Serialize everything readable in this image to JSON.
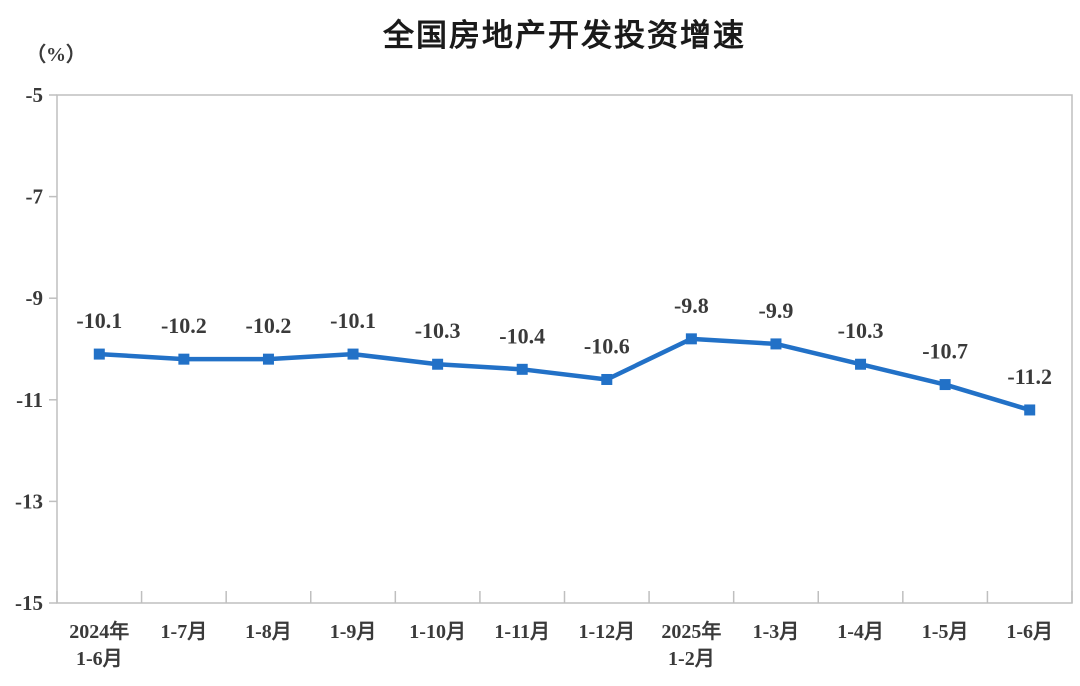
{
  "chart_data": {
    "type": "line",
    "title": "全国房地产开发投资增速",
    "unit": "（%）",
    "categories": [
      [
        "2024年",
        "1-6月"
      ],
      [
        "1-7月"
      ],
      [
        "1-8月"
      ],
      [
        "1-9月"
      ],
      [
        "1-10月"
      ],
      [
        "1-11月"
      ],
      [
        "1-12月"
      ],
      [
        "2025年",
        "1-2月"
      ],
      [
        "1-3月"
      ],
      [
        "1-4月"
      ],
      [
        "1-5月"
      ],
      [
        "1-6月"
      ]
    ],
    "series": [
      {
        "name": "全国房地产开发投资增速",
        "values": [
          -10.1,
          -10.2,
          -10.2,
          -10.1,
          -10.3,
          -10.4,
          -10.6,
          -9.8,
          -9.9,
          -10.3,
          -10.7,
          -11.2
        ]
      }
    ],
    "data_labels": [
      "-10.1",
      "-10.2",
      "-10.2",
      "-10.1",
      "-10.3",
      "-10.4",
      "-10.6",
      "-9.8",
      "-9.9",
      "-10.3",
      "-10.7",
      "-11.2"
    ],
    "xlabel": "",
    "ylabel": "（%）",
    "ylim": [
      -15,
      -5
    ],
    "yticks": [
      -5,
      -7,
      -9,
      -11,
      -13,
      -15
    ],
    "grid": false,
    "legend_position": "none",
    "marker": "square",
    "colors": {
      "line": "#2271C7",
      "axis": "#BFBFBF",
      "text": "#3A3A3A",
      "title": "#1A1A1A"
    }
  }
}
